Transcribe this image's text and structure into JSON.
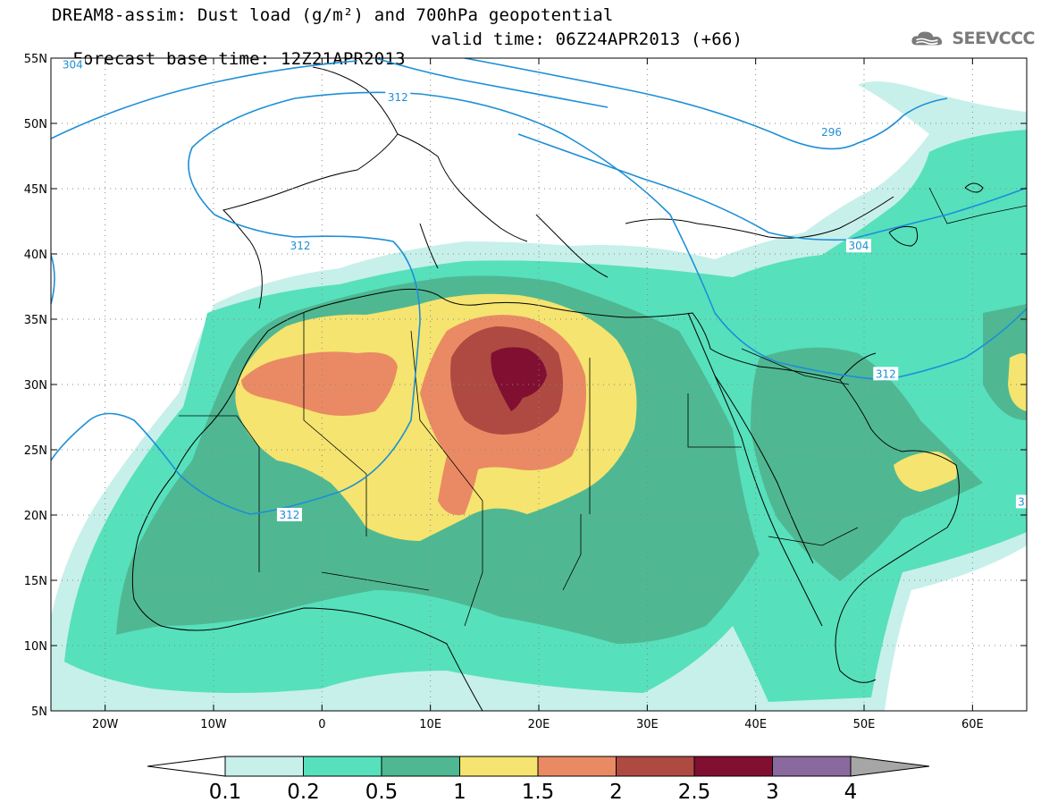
{
  "title": {
    "line1": "DREAM8-assim: Dust load (g/m²) and 700hPa geopotential",
    "base_time": "Forecast base time: 12Z21APR2013",
    "valid_time": "valid time: 06Z24APR2013 (+66)"
  },
  "logo": {
    "text": "SEEVCCC",
    "icon": "cloud-icon"
  },
  "map": {
    "lon_range": [
      -25,
      65
    ],
    "lat_range": [
      5,
      55
    ],
    "lon_ticks": [
      {
        "value": -20,
        "label": "20W"
      },
      {
        "value": -10,
        "label": "10W"
      },
      {
        "value": 0,
        "label": "0"
      },
      {
        "value": 10,
        "label": "10E"
      },
      {
        "value": 20,
        "label": "20E"
      },
      {
        "value": 30,
        "label": "30E"
      },
      {
        "value": 40,
        "label": "40E"
      },
      {
        "value": 50,
        "label": "50E"
      },
      {
        "value": 60,
        "label": "60E"
      }
    ],
    "lat_ticks": [
      {
        "value": 5,
        "label": "5N"
      },
      {
        "value": 10,
        "label": "10N"
      },
      {
        "value": 15,
        "label": "15N"
      },
      {
        "value": 20,
        "label": "20N"
      },
      {
        "value": 25,
        "label": "25N"
      },
      {
        "value": 30,
        "label": "30N"
      },
      {
        "value": 35,
        "label": "35N"
      },
      {
        "value": 40,
        "label": "40N"
      },
      {
        "value": 45,
        "label": "45N"
      },
      {
        "value": 50,
        "label": "50N"
      },
      {
        "value": 55,
        "label": "55N"
      }
    ],
    "grid": "dotted",
    "contour_labels": [
      {
        "text": "304",
        "lon": -23,
        "lat": 54.5
      },
      {
        "text": "312",
        "lon": 7,
        "lat": 52.0
      },
      {
        "text": "296",
        "lon": 47,
        "lat": 49.3
      },
      {
        "text": "312",
        "lon": -2,
        "lat": 40.6
      },
      {
        "text": "304",
        "lon": 49.5,
        "lat": 40.6
      },
      {
        "text": "312",
        "lon": 52,
        "lat": 30.8
      },
      {
        "text": "312",
        "lon": -3,
        "lat": 20.0
      },
      {
        "text": "3",
        "lon": 64.5,
        "lat": 21.0
      }
    ]
  },
  "colorbar": {
    "labels": [
      "0.1",
      "0.2",
      "0.5",
      "1",
      "1.5",
      "2",
      "2.5",
      "3",
      "4"
    ],
    "colors": [
      "#c7f0ea",
      "#57e0bc",
      "#4fb892",
      "#f5e46f",
      "#ea8a64",
      "#ae4a41",
      "#810f32",
      "#8a6a9e"
    ],
    "under_color": "#ffffff",
    "over_color": "#a6a6a6"
  },
  "colors": {
    "contour": "#1d8fd6",
    "coast": "#000000"
  }
}
